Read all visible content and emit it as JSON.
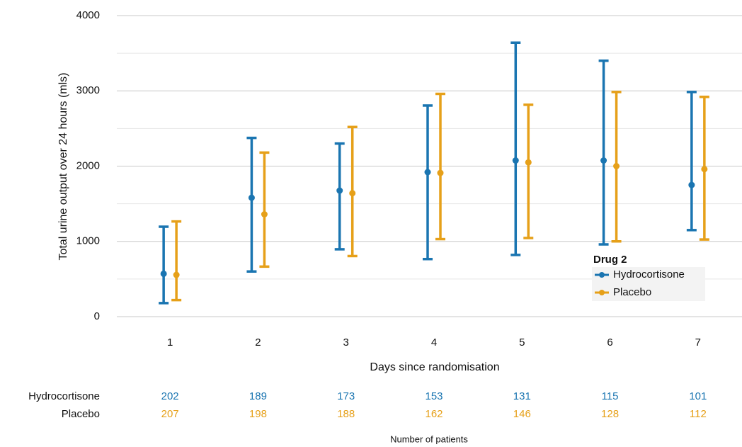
{
  "chart_data": {
    "type": "errorbar",
    "xlabel": "Days since randomisation",
    "ylabel": "Total urine output over 24 hours (mls)",
    "categories": [
      "1",
      "2",
      "3",
      "4",
      "5",
      "6",
      "7"
    ],
    "series": [
      {
        "name": "Hydrocortisone",
        "color": "#1a75b1",
        "values": [
          570,
          1580,
          1675,
          1920,
          2075,
          2075,
          1750
        ],
        "low": [
          180,
          600,
          895,
          765,
          820,
          960,
          1150
        ],
        "high": [
          1195,
          2375,
          2300,
          2805,
          3640,
          3400,
          2985
        ],
        "patients": [
          202,
          189,
          173,
          153,
          131,
          115,
          101
        ]
      },
      {
        "name": "Placebo",
        "color": "#e6a019",
        "values": [
          555,
          1360,
          1640,
          1910,
          2050,
          2000,
          1960
        ],
        "low": [
          220,
          665,
          805,
          1030,
          1045,
          1000,
          1025
        ],
        "high": [
          1265,
          2180,
          2520,
          2960,
          2815,
          2985,
          2920
        ],
        "patients": [
          207,
          198,
          188,
          162,
          146,
          128,
          112
        ]
      }
    ],
    "ylim": [
      0,
      4000
    ],
    "yticks": [
      0,
      1000,
      2000,
      3000,
      4000
    ],
    "grid": true,
    "minor_grid": true,
    "legend": {
      "title": "Drug 2",
      "position": "center right"
    },
    "patients_title": "Number of patients"
  }
}
